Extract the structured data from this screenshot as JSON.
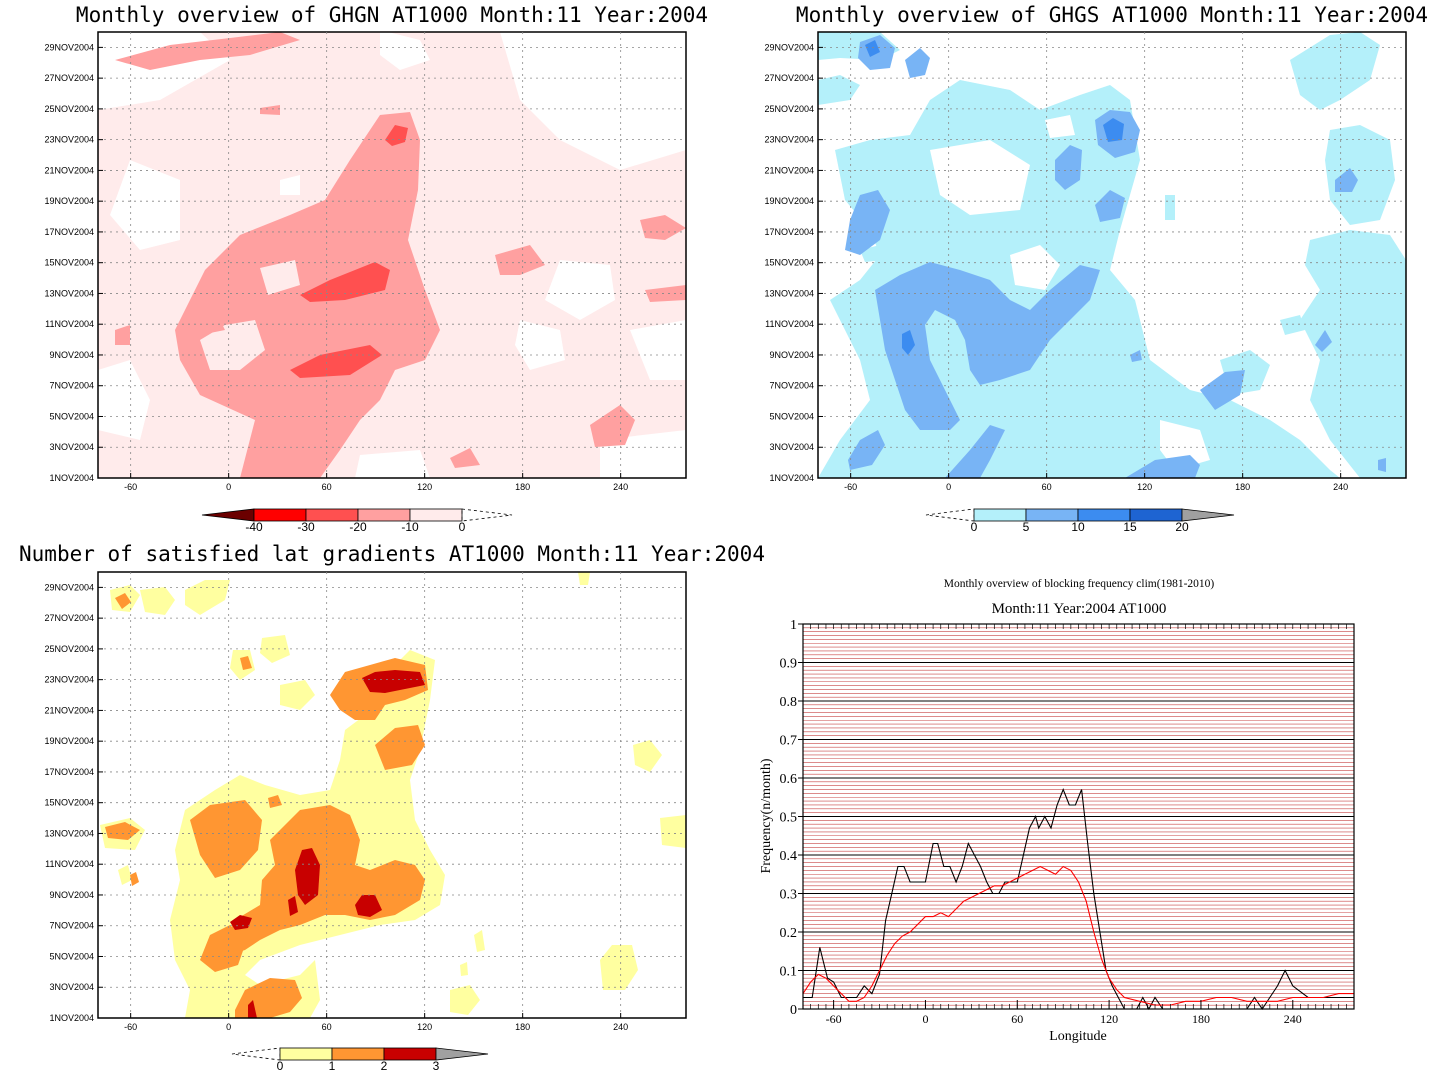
{
  "panels": {
    "ghgn": {
      "title": "Monthly overview of GHGN AT1000 Month:11 Year:2004",
      "colorbar": {
        "labels": [
          "-40",
          "-30",
          "-20",
          "-10",
          "0"
        ],
        "colors": [
          "#6b0000",
          "#ff0000",
          "#ff5050",
          "#ffa0a0",
          "#ffebeb"
        ]
      }
    },
    "ghgs": {
      "title": "Monthly overview of GHGS AT1000 Month:11 Year:2004",
      "colorbar": {
        "labels": [
          "0",
          "5",
          "10",
          "15",
          "20"
        ],
        "colors": [
          "#b4f0fa",
          "#78b4f5",
          "#3c8cf0",
          "#1e64d2",
          "#a0a0a0"
        ]
      }
    },
    "lat": {
      "title": "Number of satisfied lat gradients AT1000 Month:11 Year:2004",
      "colorbar": {
        "labels": [
          "0",
          "1",
          "2",
          "3"
        ],
        "colors": [
          "#ffffa0",
          "#ff9632",
          "#c80000",
          "#a0a0a0"
        ]
      }
    },
    "blocking": {
      "title": "Monthly overview of blocking frequency clim(1981-2010)",
      "subtitle": "Month:11 Year:2004  AT1000",
      "xlabel": "Longitude",
      "ylabel": "Frequency(n/month)"
    }
  },
  "map_axes": {
    "x_ticks": [
      "-60",
      "0",
      "60",
      "120",
      "180",
      "240"
    ],
    "x_values": [
      -60,
      0,
      60,
      120,
      180,
      240
    ],
    "x_range": [
      -80,
      280
    ],
    "y_ticks": [
      "1NOV2004",
      "3NOV2004",
      "5NOV2004",
      "7NOV2004",
      "9NOV2004",
      "11NOV2004",
      "13NOV2004",
      "15NOV2004",
      "17NOV2004",
      "19NOV2004",
      "21NOV2004",
      "23NOV2004",
      "25NOV2004",
      "27NOV2004",
      "29NOV2004"
    ],
    "y_range": [
      1,
      30
    ]
  },
  "chart_data": [
    {
      "type": "heatmap",
      "title": "Monthly overview of GHGN AT1000 Month:11 Year:2004",
      "x_range": [
        -80,
        280
      ],
      "y_range": [
        "1NOV2004",
        "30NOV2004"
      ],
      "levels": [
        -40,
        -30,
        -20,
        -10,
        0
      ],
      "min_value_approx": -30
    },
    {
      "type": "heatmap",
      "title": "Monthly overview of GHGS AT1000 Month:11 Year:2004",
      "x_range": [
        -80,
        280
      ],
      "y_range": [
        "1NOV2004",
        "30NOV2004"
      ],
      "levels": [
        0,
        5,
        10,
        15,
        20
      ],
      "max_value_approx": 15
    },
    {
      "type": "heatmap",
      "title": "Number of satisfied lat gradients AT1000 Month:11 Year:2004",
      "x_range": [
        -80,
        280
      ],
      "y_range": [
        "1NOV2004",
        "30NOV2004"
      ],
      "levels": [
        0,
        1,
        2,
        3
      ]
    },
    {
      "type": "line",
      "title": "Monthly overview of blocking frequency clim(1981-2010)",
      "subtitle": "Month:11 Year:2004  AT1000",
      "xlabel": "Longitude",
      "ylabel": "Frequency(n/month)",
      "xlim": [
        -80,
        280
      ],
      "ylim": [
        0,
        1
      ],
      "x_ticks": [
        -60,
        0,
        60,
        120,
        180,
        240
      ],
      "y_ticks": [
        0,
        0.1,
        0.2,
        0.3,
        0.4,
        0.5,
        0.6,
        0.7,
        0.8,
        0.9,
        1
      ],
      "grid": true,
      "series": [
        {
          "color": "#000000",
          "x": [
            -80,
            -74,
            -69,
            -64,
            -60,
            -55,
            -50,
            -45,
            -40,
            -35,
            -30,
            -26,
            -22,
            -18,
            -14,
            -10,
            -5,
            0,
            5,
            8,
            12,
            16,
            20,
            24,
            28,
            32,
            36,
            40,
            44,
            48,
            52,
            56,
            60,
            64,
            68,
            72,
            74,
            78,
            82,
            86,
            90,
            94,
            98,
            102,
            106,
            110,
            114,
            118,
            122,
            126,
            130,
            134,
            138,
            142,
            146,
            150,
            155,
            160,
            180,
            200,
            210,
            215,
            220,
            225,
            230,
            235,
            240,
            250,
            260,
            270,
            280
          ],
          "y": [
            0.03,
            0.03,
            0.16,
            0.08,
            0.07,
            0.03,
            0.03,
            0.03,
            0.06,
            0.04,
            0.09,
            0.23,
            0.3,
            0.37,
            0.37,
            0.33,
            0.33,
            0.33,
            0.43,
            0.43,
            0.37,
            0.37,
            0.33,
            0.37,
            0.43,
            0.4,
            0.37,
            0.33,
            0.3,
            0.3,
            0.33,
            0.33,
            0.33,
            0.4,
            0.47,
            0.5,
            0.47,
            0.5,
            0.47,
            0.53,
            0.57,
            0.53,
            0.53,
            0.57,
            0.43,
            0.3,
            0.2,
            0.1,
            0.06,
            0.03,
            0.0,
            0.0,
            0.0,
            0.03,
            0.0,
            0.03,
            0.0,
            0.0,
            0.0,
            0.0,
            0.0,
            0.03,
            0.0,
            0.03,
            0.06,
            0.1,
            0.06,
            0.03,
            0.03,
            0.03,
            0.03
          ]
        },
        {
          "color": "#ff0000",
          "x": [
            -80,
            -75,
            -70,
            -65,
            -60,
            -55,
            -50,
            -45,
            -40,
            -35,
            -30,
            -25,
            -20,
            -15,
            -10,
            -5,
            0,
            5,
            10,
            15,
            20,
            25,
            30,
            35,
            40,
            45,
            50,
            55,
            60,
            65,
            70,
            75,
            80,
            85,
            90,
            95,
            100,
            105,
            110,
            115,
            120,
            125,
            130,
            140,
            150,
            160,
            170,
            180,
            190,
            200,
            210,
            220,
            230,
            240,
            250,
            260,
            270,
            280
          ],
          "y": [
            0.04,
            0.07,
            0.09,
            0.08,
            0.06,
            0.04,
            0.02,
            0.02,
            0.03,
            0.06,
            0.1,
            0.14,
            0.17,
            0.19,
            0.2,
            0.22,
            0.24,
            0.24,
            0.25,
            0.24,
            0.26,
            0.28,
            0.29,
            0.3,
            0.31,
            0.32,
            0.32,
            0.33,
            0.34,
            0.35,
            0.36,
            0.37,
            0.36,
            0.35,
            0.37,
            0.36,
            0.33,
            0.28,
            0.2,
            0.13,
            0.08,
            0.05,
            0.03,
            0.02,
            0.01,
            0.01,
            0.02,
            0.02,
            0.03,
            0.03,
            0.02,
            0.02,
            0.02,
            0.03,
            0.03,
            0.03,
            0.04,
            0.04
          ]
        }
      ]
    }
  ]
}
